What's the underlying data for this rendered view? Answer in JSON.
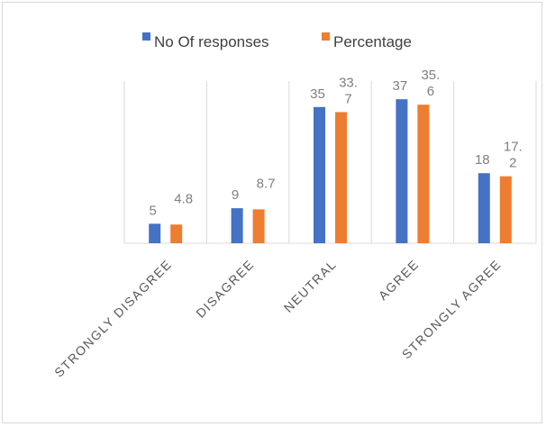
{
  "chart_data": {
    "type": "bar",
    "categories": [
      "STRONGLY DISAGREE",
      "DISAGREE",
      "NEUTRAL",
      "AGREE",
      "STRONGLY AGREE"
    ],
    "series": [
      {
        "name": "No Of responses",
        "values": [
          5,
          9,
          35,
          37,
          18
        ],
        "labels": [
          "5",
          "9",
          "35",
          "37",
          "18"
        ],
        "color": "#4472c4"
      },
      {
        "name": "Percentage",
        "values": [
          4.8,
          8.7,
          33.7,
          35.6,
          17.2
        ],
        "labels": [
          "4.8",
          "8.7",
          "33.7",
          "35.6",
          "17.2"
        ],
        "color": "#ed7d31"
      }
    ],
    "ylim": [
      0,
      40
    ],
    "grid": "vertical-category-dividers",
    "legend": "top"
  }
}
